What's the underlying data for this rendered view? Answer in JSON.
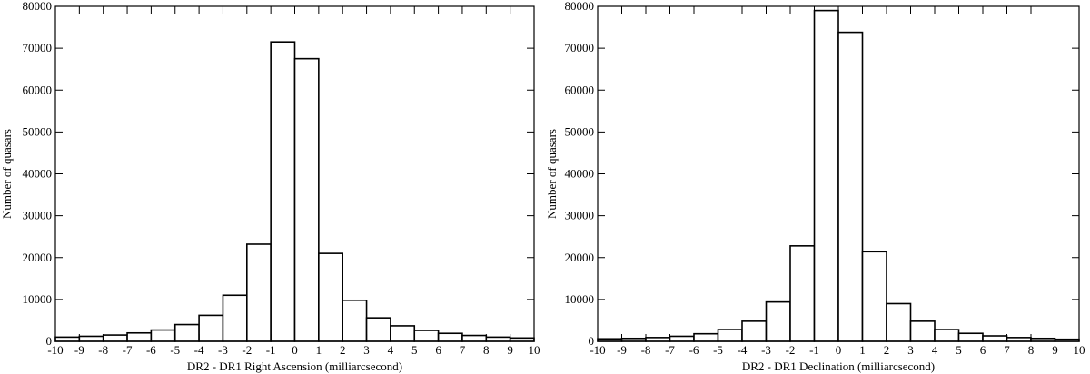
{
  "chart_data": [
    {
      "type": "histogram",
      "xlabel": "DR2 - DR1 Right Ascension  (milliarcsecond)",
      "ylabel": "Number of quasars",
      "bins": [
        -10,
        -9,
        -8,
        -7,
        -6,
        -5,
        -4,
        -3,
        -2,
        -1,
        0,
        1,
        2,
        3,
        4,
        5,
        6,
        7,
        8,
        9,
        10
      ],
      "values": [
        1000,
        1200,
        1500,
        2000,
        2700,
        4000,
        6200,
        11000,
        23200,
        71500,
        67500,
        21000,
        9800,
        5600,
        3700,
        2600,
        1900,
        1400,
        1000,
        800
      ],
      "color": "#000000",
      "xlim": [
        -10,
        10
      ],
      "xticks": [
        -10,
        -9,
        -8,
        -7,
        -6,
        -5,
        -4,
        -3,
        -2,
        -1,
        0,
        1,
        2,
        3,
        4,
        5,
        6,
        7,
        8,
        9,
        10
      ],
      "ylim": [
        0,
        80000
      ],
      "yticks": [
        0,
        10000,
        20000,
        30000,
        40000,
        50000,
        60000,
        70000,
        80000
      ]
    },
    {
      "type": "histogram",
      "xlabel": "DR2 - DR1 Declination (milliarcsecond)",
      "ylabel": "Number of quasars",
      "bins": [
        -10,
        -9,
        -8,
        -7,
        -6,
        -5,
        -4,
        -3,
        -2,
        -1,
        0,
        1,
        2,
        3,
        4,
        5,
        6,
        7,
        8,
        9,
        10
      ],
      "values": [
        600,
        700,
        900,
        1200,
        1800,
        2800,
        4800,
        9400,
        22800,
        79000,
        73800,
        21400,
        9000,
        4800,
        2800,
        1900,
        1300,
        900,
        700,
        500
      ],
      "color": "#000000",
      "xlim": [
        -10,
        10
      ],
      "xticks": [
        -10,
        -9,
        -8,
        -7,
        -6,
        -5,
        -4,
        -3,
        -2,
        -1,
        0,
        1,
        2,
        3,
        4,
        5,
        6,
        7,
        8,
        9,
        10
      ],
      "ylim": [
        0,
        80000
      ],
      "yticks": [
        0,
        10000,
        20000,
        30000,
        40000,
        50000,
        60000,
        70000,
        80000
      ]
    }
  ]
}
